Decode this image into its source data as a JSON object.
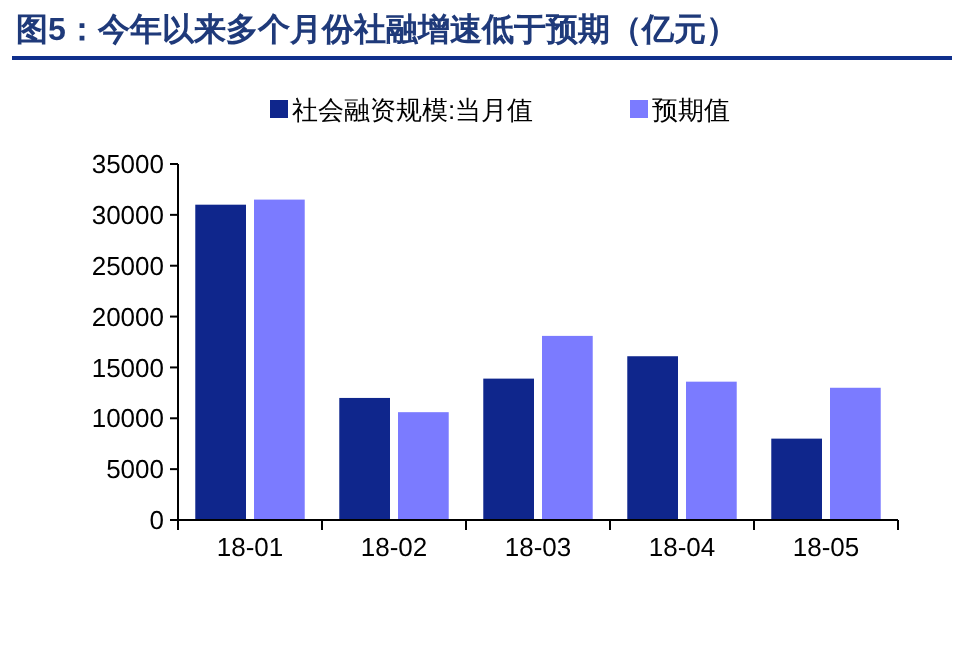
{
  "chart_data": {
    "type": "bar",
    "title": "图5：今年以来多个月份社融增速低于预期（亿元）",
    "categories": [
      "18-01",
      "18-02",
      "18-03",
      "18-04",
      "18-05"
    ],
    "series": [
      {
        "name": "社会融资规模:当月值",
        "color": "#0f268c",
        "values": [
          31000,
          12000,
          13900,
          16100,
          8000
        ]
      },
      {
        "name": "预期值",
        "color": "#7b7bff",
        "values": [
          31500,
          10600,
          18100,
          13600,
          13000
        ]
      }
    ],
    "ylim": [
      0,
      35000
    ],
    "yticks": [
      0,
      5000,
      10000,
      15000,
      20000,
      25000,
      30000,
      35000
    ],
    "legend": "top",
    "grid": false
  }
}
